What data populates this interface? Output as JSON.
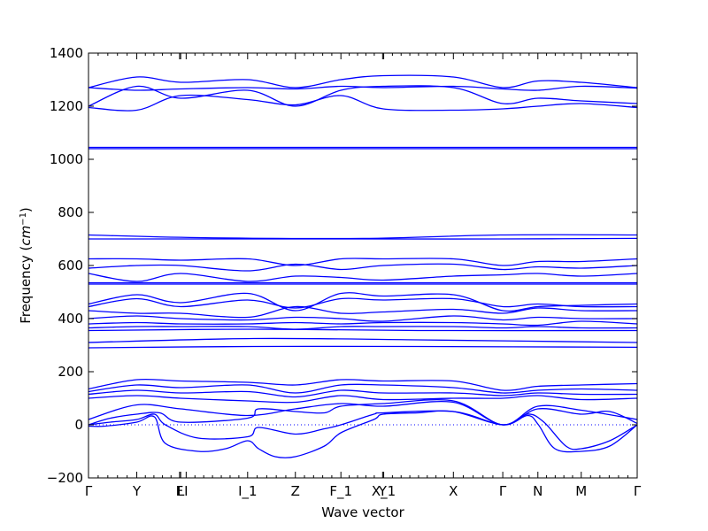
{
  "chart_data": {
    "type": "line",
    "title": "",
    "xlabel": "Wave vector",
    "ylabel_text": "Frequency (",
    "ylabel_unit": "cm",
    "ylabel_exponent": "−1",
    "ylabel_close": ")",
    "ylim": [
      -200,
      1400
    ],
    "yticks": [
      -200,
      0,
      200,
      400,
      600,
      800,
      1000,
      1200,
      1400
    ],
    "xlim": [
      0,
      1
    ],
    "high_symmetry_points": [
      {
        "label": "Γ",
        "x": 0.0
      },
      {
        "label": "Y",
        "x": 0.088
      },
      {
        "label": "F",
        "x": 0.166
      },
      {
        "label": "L",
        "x": 0.168
      },
      {
        "label": "I",
        "x": 0.178
      },
      {
        "label": "I_1",
        "x": 0.29
      },
      {
        "label": "Z",
        "x": 0.377
      },
      {
        "label": "F_1",
        "x": 0.46
      },
      {
        "label": "Y",
        "x": 0.536
      },
      {
        "label": "X_1",
        "x": 0.538
      },
      {
        "label": "X",
        "x": 0.665
      },
      {
        "label": "Γ",
        "x": 0.755
      },
      {
        "label": "N",
        "x": 0.819
      },
      {
        "label": "M",
        "x": 0.898
      },
      {
        "label": "Γ",
        "x": 1.0
      }
    ],
    "zero_line": true,
    "line_color": "#0000ff",
    "series": [
      {
        "x": [
          0,
          0.088,
          0.168,
          0.29,
          0.377,
          0.46,
          0.537,
          0.665,
          0.755,
          0.819,
          0.898,
          1.0
        ],
        "values": [
          1270,
          1310,
          1290,
          1300,
          1270,
          1300,
          1315,
          1310,
          1270,
          1295,
          1290,
          1270
        ]
      },
      {
        "x": [
          0,
          0.088,
          0.168,
          0.29,
          0.377,
          0.46,
          0.537,
          0.665,
          0.755,
          0.819,
          0.898,
          1.0
        ],
        "values": [
          1270,
          1260,
          1265,
          1270,
          1265,
          1275,
          1270,
          1275,
          1265,
          1260,
          1275,
          1268
        ]
      },
      {
        "x": [
          0,
          0.088,
          0.168,
          0.29,
          0.377,
          0.46,
          0.537,
          0.665,
          0.755,
          0.819,
          0.898,
          1.0
        ],
        "values": [
          1200,
          1275,
          1230,
          1260,
          1200,
          1260,
          1275,
          1270,
          1210,
          1230,
          1220,
          1210
        ]
      },
      {
        "x": [
          0,
          0.088,
          0.168,
          0.29,
          0.377,
          0.46,
          0.537,
          0.665,
          0.755,
          0.819,
          0.898,
          1.0
        ],
        "values": [
          1195,
          1185,
          1240,
          1225,
          1205,
          1240,
          1190,
          1185,
          1190,
          1200,
          1210,
          1195
        ]
      },
      {
        "x": [
          0,
          0.5,
          1.0
        ],
        "values": [
          1045,
          1045,
          1045
        ]
      },
      {
        "x": [
          0,
          0.5,
          1.0
        ],
        "values": [
          1040,
          1040,
          1040
        ]
      },
      {
        "x": [
          0,
          0.2,
          0.5,
          0.75,
          1.0
        ],
        "values": [
          715,
          705,
          702,
          715,
          715
        ]
      },
      {
        "x": [
          0,
          0.2,
          0.5,
          0.75,
          1.0
        ],
        "values": [
          700,
          700,
          700,
          700,
          702
        ]
      },
      {
        "x": [
          0,
          0.088,
          0.168,
          0.29,
          0.377,
          0.46,
          0.537,
          0.665,
          0.755,
          0.819,
          0.898,
          1.0
        ],
        "values": [
          625,
          625,
          620,
          625,
          600,
          625,
          625,
          625,
          600,
          615,
          615,
          625
        ]
      },
      {
        "x": [
          0,
          0.088,
          0.168,
          0.29,
          0.377,
          0.46,
          0.537,
          0.665,
          0.755,
          0.819,
          0.898,
          1.0
        ],
        "values": [
          590,
          600,
          600,
          580,
          605,
          585,
          600,
          605,
          585,
          595,
          590,
          600
        ]
      },
      {
        "x": [
          0,
          0.088,
          0.168,
          0.29,
          0.377,
          0.46,
          0.537,
          0.665,
          0.755,
          0.819,
          0.898,
          1.0
        ],
        "values": [
          570,
          540,
          570,
          540,
          560,
          555,
          545,
          560,
          565,
          570,
          560,
          570
        ]
      },
      {
        "x": [
          0,
          0.5,
          1.0
        ],
        "values": [
          535,
          535,
          535
        ]
      },
      {
        "x": [
          0,
          0.5,
          1.0
        ],
        "values": [
          530,
          530,
          530
        ]
      },
      {
        "x": [
          0,
          0.088,
          0.168,
          0.29,
          0.377,
          0.46,
          0.537,
          0.665,
          0.755,
          0.819,
          0.898,
          1.0
        ],
        "values": [
          455,
          490,
          460,
          495,
          430,
          495,
          485,
          490,
          430,
          445,
          450,
          455
        ]
      },
      {
        "x": [
          0,
          0.088,
          0.168,
          0.29,
          0.377,
          0.46,
          0.537,
          0.665,
          0.755,
          0.819,
          0.898,
          1.0
        ],
        "values": [
          445,
          475,
          445,
          470,
          440,
          475,
          470,
          475,
          445,
          455,
          445,
          445
        ]
      },
      {
        "x": [
          0,
          0.088,
          0.168,
          0.29,
          0.377,
          0.46,
          0.537,
          0.665,
          0.755,
          0.819,
          0.898,
          1.0
        ],
        "values": [
          430,
          420,
          420,
          405,
          445,
          420,
          425,
          435,
          420,
          440,
          430,
          430
        ]
      },
      {
        "x": [
          0,
          0.088,
          0.168,
          0.29,
          0.377,
          0.46,
          0.537,
          0.665,
          0.755,
          0.819,
          0.898,
          1.0
        ],
        "values": [
          400,
          410,
          400,
          395,
          405,
          400,
          390,
          410,
          395,
          405,
          400,
          400
        ]
      },
      {
        "x": [
          0,
          0.088,
          0.168,
          0.29,
          0.377,
          0.46,
          0.537,
          0.665,
          0.755,
          0.819,
          0.898,
          1.0
        ],
        "values": [
          380,
          385,
          380,
          380,
          385,
          380,
          385,
          385,
          380,
          375,
          390,
          380
        ]
      },
      {
        "x": [
          0,
          0.088,
          0.168,
          0.29,
          0.377,
          0.46,
          0.537,
          0.665,
          0.755,
          0.819,
          0.898,
          1.0
        ],
        "values": [
          365,
          370,
          370,
          370,
          360,
          370,
          370,
          370,
          365,
          370,
          365,
          365
        ]
      },
      {
        "x": [
          0,
          0.3,
          0.6,
          1.0
        ],
        "values": [
          355,
          360,
          355,
          355
        ]
      },
      {
        "x": [
          0,
          0.3,
          0.6,
          1.0
        ],
        "values": [
          310,
          325,
          320,
          310
        ]
      },
      {
        "x": [
          0,
          0.3,
          0.6,
          1.0
        ],
        "values": [
          290,
          295,
          295,
          292
        ]
      },
      {
        "x": [
          0,
          0.088,
          0.168,
          0.29,
          0.377,
          0.46,
          0.537,
          0.665,
          0.755,
          0.819,
          0.898,
          1.0
        ],
        "values": [
          135,
          170,
          165,
          160,
          150,
          170,
          165,
          165,
          130,
          145,
          150,
          155
        ]
      },
      {
        "x": [
          0,
          0.088,
          0.168,
          0.29,
          0.377,
          0.46,
          0.537,
          0.665,
          0.755,
          0.819,
          0.898,
          1.0
        ],
        "values": [
          125,
          150,
          140,
          150,
          120,
          150,
          150,
          140,
          120,
          130,
          135,
          130
        ]
      },
      {
        "x": [
          0,
          0.088,
          0.168,
          0.29,
          0.377,
          0.46,
          0.537,
          0.665,
          0.755,
          0.819,
          0.898,
          1.0
        ],
        "values": [
          115,
          130,
          120,
          125,
          105,
          130,
          120,
          120,
          110,
          120,
          115,
          115
        ]
      },
      {
        "x": [
          0,
          0.088,
          0.168,
          0.29,
          0.377,
          0.46,
          0.537,
          0.665,
          0.755,
          0.819,
          0.898,
          1.0
        ],
        "values": [
          100,
          110,
          100,
          90,
          85,
          110,
          95,
          100,
          100,
          110,
          95,
          100
        ]
      },
      {
        "x": [
          0,
          0.088,
          0.168,
          0.29,
          0.377,
          0.46,
          0.537,
          0.665,
          0.755,
          0.819,
          0.898,
          1.0
        ],
        "values": [
          20,
          75,
          60,
          35,
          60,
          80,
          70,
          85,
          0,
          70,
          55,
          20
        ]
      },
      {
        "x": [
          0,
          0.04,
          0.088,
          0.13,
          0.168,
          0.29,
          0.31,
          0.377,
          0.43,
          0.46,
          0.537,
          0.665,
          0.755,
          0.819,
          0.898,
          0.95,
          1.0
        ],
        "values": [
          0,
          25,
          40,
          45,
          10,
          25,
          60,
          50,
          45,
          70,
          80,
          90,
          0,
          60,
          40,
          50,
          5
        ]
      },
      {
        "x": [
          0,
          0.04,
          0.088,
          0.12,
          0.14,
          0.2,
          0.29,
          0.31,
          0.377,
          0.43,
          0.46,
          0.52,
          0.537,
          0.665,
          0.755,
          0.8,
          0.83,
          0.87,
          0.898,
          0.95,
          1.0
        ],
        "values": [
          0,
          10,
          20,
          40,
          0,
          -50,
          -45,
          -10,
          -35,
          -15,
          0,
          40,
          45,
          50,
          0,
          40,
          10,
          -80,
          -90,
          -60,
          0
        ]
      },
      {
        "x": [
          0,
          0.03,
          0.088,
          0.12,
          0.14,
          0.2,
          0.25,
          0.29,
          0.31,
          0.34,
          0.377,
          0.43,
          0.46,
          0.52,
          0.537,
          0.6,
          0.665,
          0.755,
          0.8,
          0.82,
          0.85,
          0.898,
          0.95,
          1.0
        ],
        "values": [
          -5,
          -5,
          10,
          30,
          -70,
          -100,
          -90,
          -60,
          -90,
          -120,
          -120,
          -80,
          -30,
          20,
          40,
          45,
          50,
          0,
          35,
          0,
          -90,
          -100,
          -80,
          0
        ]
      }
    ]
  }
}
